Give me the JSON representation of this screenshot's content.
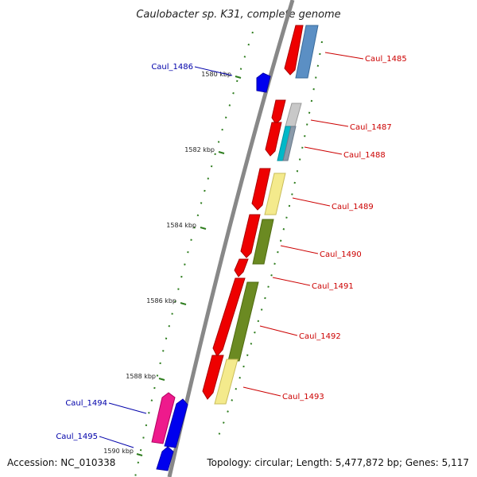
{
  "title": "Caulobacter sp. K31, complete genome",
  "accession": "Accession: NC_010338",
  "topology": "Topology: circular; Length: 5,477,872 bp; Genes: 5,117",
  "ticks": [
    "1580 kbp",
    "1582 kbp",
    "1584 kbp",
    "1586 kbp",
    "1588 kbp",
    "1590 kbp"
  ],
  "colors": {
    "backbone": "#888888",
    "tick": "#2e7d1e",
    "forward_label": "#cc0000",
    "reverse_label": "#0000aa"
  },
  "genes": [
    {
      "name": "Caul_1485",
      "strand": "forward"
    },
    {
      "name": "Caul_1486",
      "strand": "reverse"
    },
    {
      "name": "Caul_1487",
      "strand": "forward"
    },
    {
      "name": "Caul_1488",
      "strand": "forward"
    },
    {
      "name": "Caul_1489",
      "strand": "forward"
    },
    {
      "name": "Caul_1490",
      "strand": "forward"
    },
    {
      "name": "Caul_1491",
      "strand": "forward"
    },
    {
      "name": "Caul_1492",
      "strand": "forward"
    },
    {
      "name": "Caul_1493",
      "strand": "forward"
    },
    {
      "name": "Caul_1494",
      "strand": "reverse"
    },
    {
      "name": "Caul_1495",
      "strand": "reverse"
    }
  ]
}
